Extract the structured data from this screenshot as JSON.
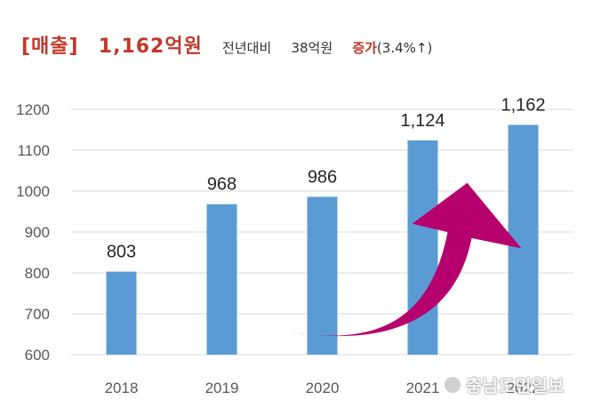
{
  "headline": {
    "label": "[매출]",
    "value": "1,162억원",
    "compare": "전년대비",
    "diff": "38억원",
    "change_word": "증가",
    "change_pct": "(3.4%↑)"
  },
  "watermark": "충남도민일보",
  "colors": {
    "bar": "#5b9bd5",
    "arrow": "#b5006e",
    "grid": "#d9d9d9",
    "title_red": "#c0392b"
  },
  "chart_data": {
    "type": "bar",
    "categories": [
      "2018",
      "2019",
      "2020",
      "2021",
      "2022"
    ],
    "values": [
      803,
      968,
      986,
      1124,
      1162
    ],
    "value_labels": [
      "803",
      "968",
      "986",
      "1,124",
      "1,162"
    ],
    "y_ticks": [
      "600",
      "700",
      "800",
      "900",
      "1000",
      "1100",
      "1200"
    ],
    "ylim": [
      600,
      1200
    ],
    "grid": true,
    "legend": "none",
    "annotation": "arrow from 2020 to 2022"
  }
}
